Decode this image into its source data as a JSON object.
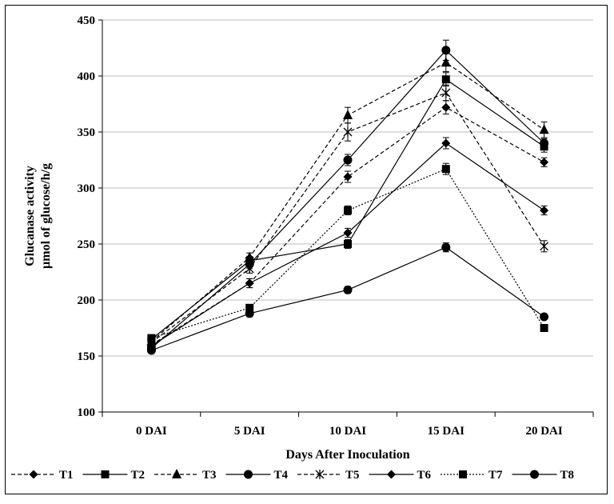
{
  "chart_data": {
    "type": "line",
    "categories": [
      "0 DAI",
      "5 DAI",
      "10 DAI",
      "15 DAI",
      "20 DAI"
    ],
    "xlabel": "Days After Inoculation",
    "ylabel": [
      "Glucanase  activity",
      "µmol  of  glucose/h/g"
    ],
    "ylim": [
      100,
      450
    ],
    "yticks": [
      100,
      150,
      200,
      250,
      300,
      350,
      400,
      450
    ],
    "grid": "horizontal",
    "legend_position": "bottom",
    "series": [
      {
        "name": "T1",
        "marker": "diamond",
        "dash": "dashed",
        "values": [
          160,
          215,
          310,
          372,
          323
        ],
        "errors": [
          2,
          4,
          5,
          6,
          4
        ]
      },
      {
        "name": "T2",
        "marker": "square",
        "dash": "solid",
        "values": [
          165,
          235,
          250,
          397,
          337
        ],
        "errors": [
          2,
          4,
          4,
          6,
          5
        ]
      },
      {
        "name": "T3",
        "marker": "triangle",
        "dash": "dashed",
        "values": [
          163,
          238,
          365,
          412,
          352
        ],
        "errors": [
          2,
          4,
          7,
          8,
          7
        ]
      },
      {
        "name": "T4",
        "marker": "circle",
        "dash": "solid",
        "values": [
          157,
          232,
          325,
          423,
          340
        ],
        "errors": [
          2,
          4,
          5,
          9,
          4
        ]
      },
      {
        "name": "T5",
        "marker": "star",
        "dash": "dashed",
        "values": [
          162,
          228,
          350,
          385,
          248
        ],
        "errors": [
          2,
          4,
          8,
          7,
          5
        ]
      },
      {
        "name": "T6",
        "marker": "diamond",
        "dash": "solid",
        "values": [
          159,
          215,
          260,
          340,
          280
        ],
        "errors": [
          2,
          4,
          4,
          5,
          4
        ]
      },
      {
        "name": "T7",
        "marker": "square",
        "dash": "dotted",
        "values": [
          166,
          193,
          280,
          317,
          175
        ],
        "errors": [
          2,
          3,
          4,
          5,
          2
        ]
      },
      {
        "name": "T8",
        "marker": "circle",
        "dash": "solid",
        "values": [
          155,
          188,
          209,
          247,
          185
        ],
        "errors": [
          2,
          3,
          3,
          4,
          2
        ]
      }
    ]
  }
}
